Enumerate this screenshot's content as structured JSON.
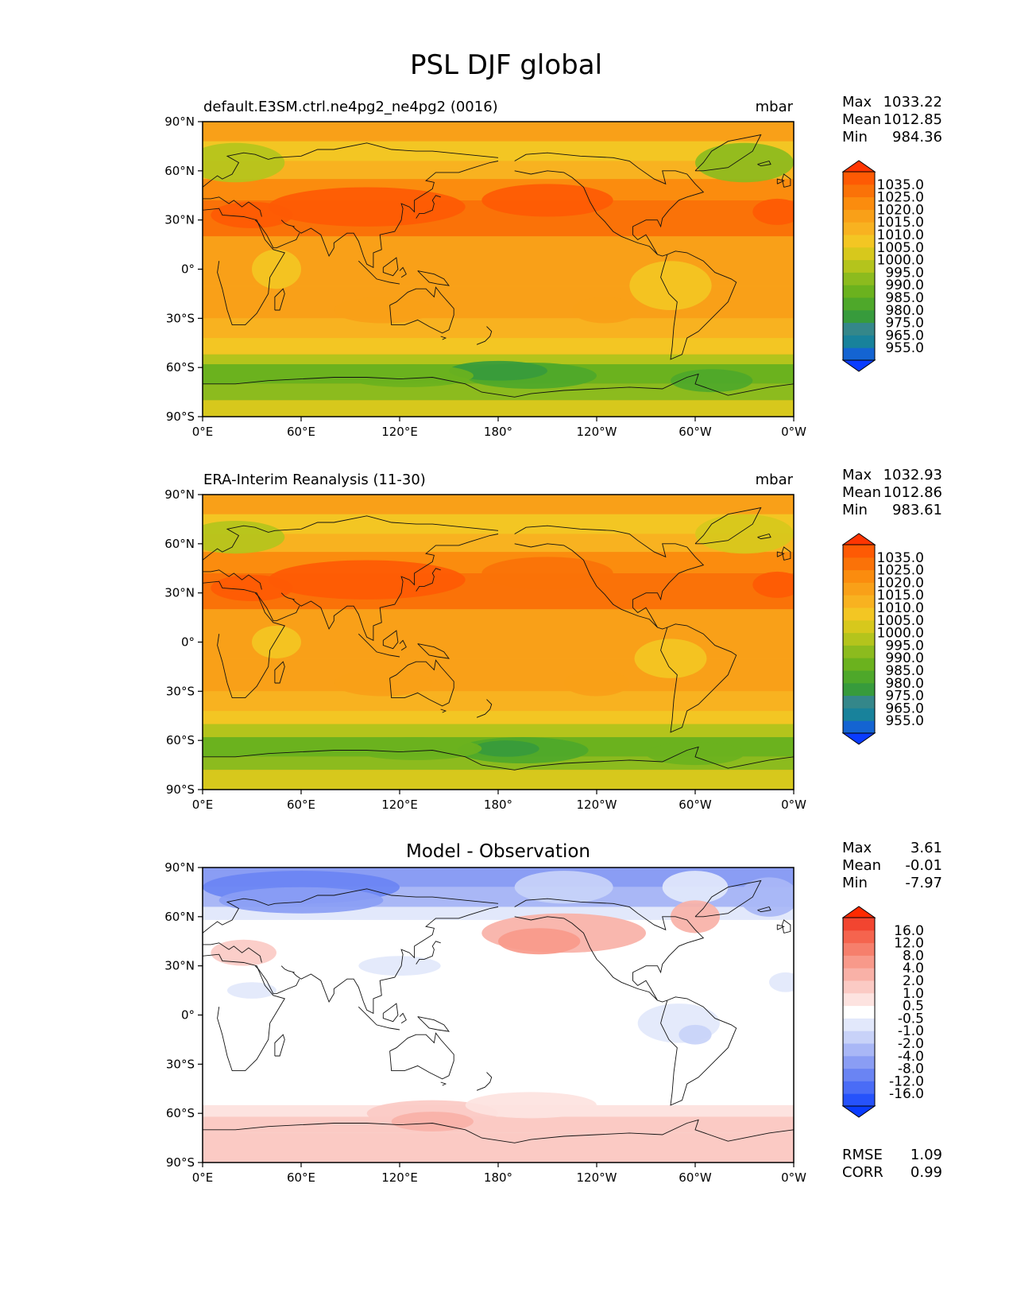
{
  "figure": {
    "title": "PSL DJF global"
  },
  "chart_data": [
    {
      "type": "heatmap",
      "id": "test",
      "title_left": "default.E3SM.ctrl.ne4pg2_ne4pg2 (0016)",
      "title_center": "",
      "units": "mbar",
      "xlabel": "",
      "ylabel": "",
      "xlim": [
        0,
        360
      ],
      "ylim": [
        -90,
        90
      ],
      "x_ticks": [
        "0°E",
        "60°E",
        "120°E",
        "180°",
        "120°W",
        "60°W",
        "0°W"
      ],
      "y_ticks": [
        "90°N",
        "60°N",
        "30°N",
        "0°",
        "30°S",
        "60°S",
        "90°S"
      ],
      "stats": [
        {
          "label": "Max",
          "value": "1033.22"
        },
        {
          "label": "Mean",
          "value": "1012.85"
        },
        {
          "label": "Min",
          "value": "984.36"
        }
      ],
      "colorbar": {
        "extend": "both",
        "colors": [
          "#0a3cff",
          "#1464d2",
          "#18829b",
          "#34878a",
          "#379b3c",
          "#4ea82a",
          "#6bb21e",
          "#8cbb1e",
          "#b4c41c",
          "#d7c81c",
          "#f3c623",
          "#f8b220",
          "#f9a018",
          "#fb8c0e",
          "#fa7208",
          "#fe5a04",
          "#ff3502"
        ],
        "labels": [
          "1035.0",
          "1025.0",
          "1020.0",
          "1015.0",
          "1010.0",
          "1005.0",
          "1000.0",
          "995.0",
          "990.0",
          "985.0",
          "980.0",
          "975.0",
          "965.0",
          "955.0"
        ]
      }
    },
    {
      "type": "heatmap",
      "id": "reference",
      "title_left": "ERA-Interim Reanalysis (11-30)",
      "title_center": "",
      "units": "mbar",
      "xlabel": "",
      "ylabel": "",
      "xlim": [
        0,
        360
      ],
      "ylim": [
        -90,
        90
      ],
      "x_ticks": [
        "0°E",
        "60°E",
        "120°E",
        "180°",
        "120°W",
        "60°W",
        "0°W"
      ],
      "y_ticks": [
        "90°N",
        "60°N",
        "30°N",
        "0°",
        "30°S",
        "60°S",
        "90°S"
      ],
      "stats": [
        {
          "label": "Max",
          "value": "1032.93"
        },
        {
          "label": "Mean",
          "value": "1012.86"
        },
        {
          "label": "Min",
          "value": "983.61"
        }
      ],
      "colorbar": {
        "extend": "both",
        "colors": [
          "#0a3cff",
          "#1464d2",
          "#18829b",
          "#34878a",
          "#379b3c",
          "#4ea82a",
          "#6bb21e",
          "#8cbb1e",
          "#b4c41c",
          "#d7c81c",
          "#f3c623",
          "#f8b220",
          "#f9a018",
          "#fb8c0e",
          "#fa7208",
          "#fe5a04",
          "#ff3502"
        ],
        "labels": [
          "1035.0",
          "1025.0",
          "1020.0",
          "1015.0",
          "1010.0",
          "1005.0",
          "1000.0",
          "995.0",
          "990.0",
          "985.0",
          "980.0",
          "975.0",
          "965.0",
          "955.0"
        ]
      }
    },
    {
      "type": "heatmap",
      "id": "difference",
      "title_left": "",
      "title_center": "Model - Observation",
      "units": "",
      "xlabel": "",
      "ylabel": "",
      "xlim": [
        0,
        360
      ],
      "ylim": [
        -90,
        90
      ],
      "x_ticks": [
        "0°E",
        "60°E",
        "120°E",
        "180°",
        "120°W",
        "60°W",
        "0°W"
      ],
      "y_ticks": [
        "90°N",
        "60°N",
        "30°N",
        "0°",
        "30°S",
        "60°S",
        "90°S"
      ],
      "stats": [
        {
          "label": "Max",
          "value": "3.61"
        },
        {
          "label": "Mean",
          "value": "-0.01"
        },
        {
          "label": "Min",
          "value": "-7.97"
        }
      ],
      "colorbar": {
        "extend": "both",
        "colors": [
          "#0a3cff",
          "#2652fb",
          "#4a6cf6",
          "#6a84f3",
          "#8a9df4",
          "#a9b7f6",
          "#c8d2f8",
          "#e2e8fb",
          "#ffffff",
          "#fde3e0",
          "#fbcac4",
          "#f9b1a7",
          "#f8998a",
          "#f67f6c",
          "#f5644e",
          "#f24530",
          "#ff2a00"
        ],
        "labels": [
          "16.0",
          "12.0",
          "8.0",
          "4.0",
          "2.0",
          "1.0",
          "0.5",
          "-0.5",
          "-1.0",
          "-2.0",
          "-4.0",
          "-8.0",
          "-12.0",
          "-16.0"
        ]
      },
      "extra_stats": [
        {
          "label": "RMSE",
          "value": "1.09"
        },
        {
          "label": "CORR",
          "value": "0.99"
        }
      ]
    }
  ]
}
